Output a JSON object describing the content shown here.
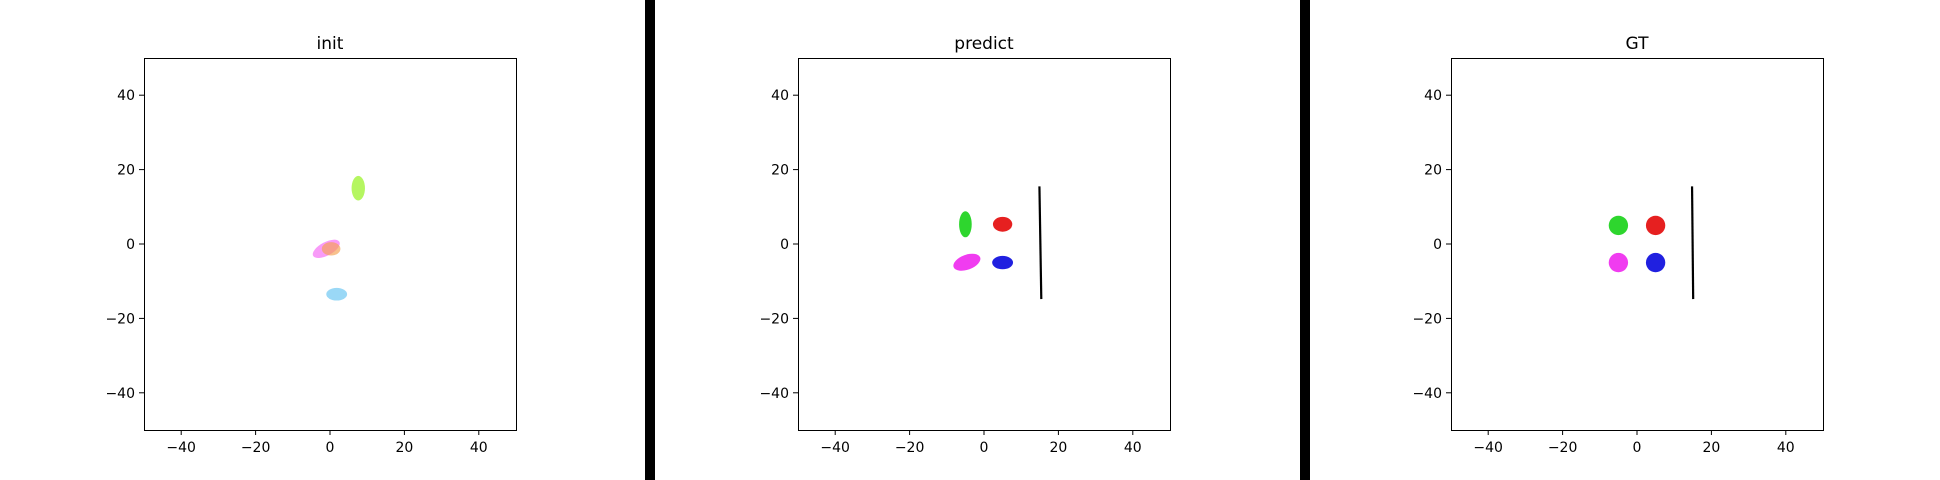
{
  "chart_data": [
    {
      "type": "scatter",
      "title": "init",
      "xlim": [
        -50,
        50
      ],
      "ylim": [
        -50,
        50
      ],
      "xticks": [
        -40,
        -20,
        0,
        20,
        40
      ],
      "yticks": [
        -40,
        -20,
        0,
        20,
        40
      ],
      "xtick_labels": [
        "−40",
        "−20",
        "0",
        "20",
        "40"
      ],
      "ytick_labels": [
        "−40",
        "−20",
        "0",
        "20",
        "40"
      ],
      "grid": false,
      "ellipses": [
        {
          "x": 7.6,
          "y": 15.0,
          "rx": 1.8,
          "ry": 3.3,
          "angle": 0,
          "color": "#a8f545",
          "opacity": 0.85
        },
        {
          "x": -1.0,
          "y": -1.3,
          "rx": 4.0,
          "ry": 1.8,
          "angle": -28,
          "color": "#f57af5",
          "opacity": 0.75
        },
        {
          "x": 0.3,
          "y": -1.3,
          "rx": 2.5,
          "ry": 1.8,
          "angle": 0,
          "color": "#f5a050",
          "opacity": 0.65
        },
        {
          "x": 1.8,
          "y": -13.5,
          "rx": 2.8,
          "ry": 1.7,
          "angle": 0,
          "color": "#8fd4f5",
          "opacity": 0.9
        }
      ],
      "lines": []
    },
    {
      "type": "scatter",
      "title": "predict",
      "xlim": [
        -50,
        50
      ],
      "ylim": [
        -50,
        50
      ],
      "xticks": [
        -40,
        -20,
        0,
        20,
        40
      ],
      "yticks": [
        -40,
        -20,
        0,
        20,
        40
      ],
      "xtick_labels": [
        "−40",
        "−20",
        "0",
        "20",
        "40"
      ],
      "ytick_labels": [
        "−40",
        "−20",
        "0",
        "20",
        "40"
      ],
      "grid": false,
      "ellipses": [
        {
          "x": -5.0,
          "y": 5.3,
          "rx": 1.7,
          "ry": 3.5,
          "angle": 0,
          "color": "#2ed62e",
          "opacity": 1
        },
        {
          "x": 5.0,
          "y": 5.3,
          "rx": 2.6,
          "ry": 2.0,
          "angle": 0,
          "color": "#e62020",
          "opacity": 1
        },
        {
          "x": -4.6,
          "y": -4.9,
          "rx": 3.8,
          "ry": 2.0,
          "angle": -20,
          "color": "#f03cf0",
          "opacity": 1
        },
        {
          "x": 5.0,
          "y": -5.0,
          "rx": 2.8,
          "ry": 1.8,
          "angle": 0,
          "color": "#2020e0",
          "opacity": 1
        }
      ],
      "lines": [
        {
          "x1": 14.9,
          "y1": 15.5,
          "x2": 15.4,
          "y2": -14.8,
          "color": "#000000"
        }
      ]
    },
    {
      "type": "scatter",
      "title": "GT",
      "xlim": [
        -50,
        50
      ],
      "ylim": [
        -50,
        50
      ],
      "xticks": [
        -40,
        -20,
        0,
        20,
        40
      ],
      "yticks": [
        -40,
        -20,
        0,
        20,
        40
      ],
      "xtick_labels": [
        "−40",
        "−20",
        "0",
        "20",
        "40"
      ],
      "ytick_labels": [
        "−40",
        "−20",
        "0",
        "20",
        "40"
      ],
      "grid": false,
      "ellipses": [
        {
          "x": -5.0,
          "y": 5.0,
          "rx": 2.6,
          "ry": 2.6,
          "angle": 0,
          "color": "#2ed62e",
          "opacity": 1
        },
        {
          "x": 5.0,
          "y": 5.0,
          "rx": 2.6,
          "ry": 2.6,
          "angle": 0,
          "color": "#e62020",
          "opacity": 1
        },
        {
          "x": -5.0,
          "y": -5.0,
          "rx": 2.6,
          "ry": 2.6,
          "angle": 0,
          "color": "#f03cf0",
          "opacity": 1
        },
        {
          "x": 5.0,
          "y": -5.0,
          "rx": 2.6,
          "ry": 2.6,
          "angle": 0,
          "color": "#2020e0",
          "opacity": 1
        }
      ],
      "lines": [
        {
          "x1": 14.8,
          "y1": 15.5,
          "x2": 15.1,
          "y2": -14.8,
          "color": "#000000"
        }
      ]
    }
  ]
}
